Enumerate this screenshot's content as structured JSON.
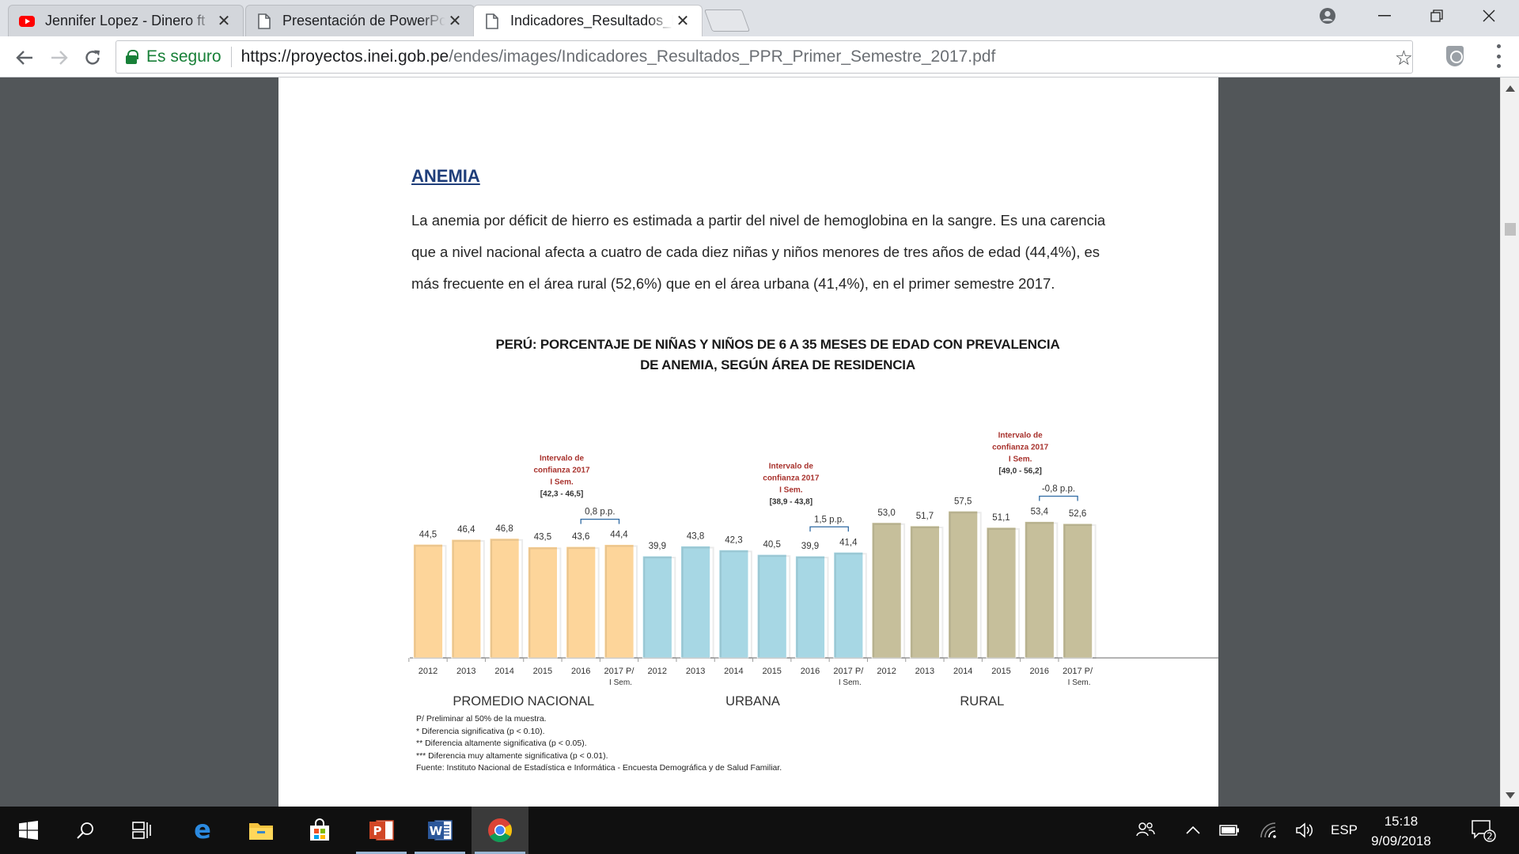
{
  "browser": {
    "tabs": [
      {
        "title": "Jennifer Lopez - Dinero ft",
        "icon": "youtube-icon"
      },
      {
        "title": "Presentación de PowerPo",
        "icon": "document-icon"
      },
      {
        "title": "Indicadores_Resultados_P",
        "icon": "document-icon"
      }
    ],
    "security_label": "Es seguro",
    "url_host": "https://proyectos.inei.gob.pe",
    "url_path": "/endes/images/Indicadores_Resultados_PPR_Primer_Semestre_2017.pdf"
  },
  "document": {
    "heading": "ANEMIA",
    "paragraph_lines": [
      "La anemia por déficit de hierro es estimada a partir del nivel de hemoglobina en la sangre. Es una carencia",
      "que a nivel nacional afecta a cuatro de cada diez niñas y niños menores de tres años de edad (44,4%), es",
      "más frecuente en el área rural (52,6%) que en el área urbana (41,4%), en el primer semestre 2017."
    ],
    "chart_title_lines": [
      "PERÚ: PORCENTAJE DE NIÑAS Y NIÑOS DE 6 A 35 MESES DE EDAD CON PREVALENCIA",
      "DE ANEMIA, SEGÚN ÁREA DE RESIDENCIA"
    ],
    "notes": [
      "P/ Preliminar al 50% de la muestra.",
      "*     Diferencia significativa (p < 0.10).",
      "**  Diferencia altamente significativa (p < 0.05).",
      "*** Diferencia muy altamente significativa (p < 0.01).",
      "Fuente: Instituto Nacional de Estadística e Informática - Encuesta Demográfica y de Salud Familiar."
    ]
  },
  "chart_data": {
    "type": "bar",
    "title": "PERÚ: PORCENTAJE DE NIÑAS Y NIÑOS DE 6 A 35 MESES DE EDAD CON PREVALENCIA DE ANEMIA, SEGÚN ÁREA DE RESIDENCIA",
    "xlabel": "",
    "ylabel": "",
    "ylim": [
      0,
      60
    ],
    "grid": false,
    "groups": [
      {
        "name": "PROMEDIO NACIONAL",
        "color": "#fdd59a",
        "categories": [
          "2012",
          "2013",
          "2014",
          "2015",
          "2016",
          "2017 P/"
        ],
        "sublabels": [
          "",
          "",
          "",
          "",
          "",
          "I Sem."
        ],
        "values": [
          44.5,
          46.4,
          46.8,
          43.5,
          43.6,
          44.4
        ],
        "value_labels": [
          "44,5",
          "46,4",
          "46,8",
          "43,5",
          "43,6",
          "44,4"
        ],
        "diff_label": "0,8 p.p.",
        "ci_lines": [
          "Intervalo de",
          "confianza 2017",
          "I Sem.",
          "[42,3 - 46,5]"
        ]
      },
      {
        "name": "URBANA",
        "color": "#a7d7e4",
        "categories": [
          "2012",
          "2013",
          "2014",
          "2015",
          "2016",
          "2017 P/"
        ],
        "sublabels": [
          "",
          "",
          "",
          "",
          "",
          "I Sem."
        ],
        "values": [
          39.9,
          43.8,
          42.3,
          40.5,
          39.9,
          41.4
        ],
        "value_labels": [
          "39,9",
          "43,8",
          "42,3",
          "40,5",
          "39,9",
          "41,4"
        ],
        "diff_label": "1,5 p.p.",
        "ci_lines": [
          "Intervalo de",
          "confianza 2017",
          "I Sem.",
          "[38,9 - 43,8]"
        ]
      },
      {
        "name": "RURAL",
        "color": "#c6bf9b",
        "categories": [
          "2012",
          "2013",
          "2014",
          "2015",
          "2016",
          "2017 P/"
        ],
        "sublabels": [
          "",
          "",
          "",
          "",
          "",
          "I Sem."
        ],
        "values": [
          53.0,
          51.7,
          57.5,
          51.1,
          53.4,
          52.6
        ],
        "value_labels": [
          "53,0",
          "51,7",
          "57,5",
          "51,1",
          "53,4",
          "52,6"
        ],
        "diff_label": "-0,8 p.p.",
        "ci_lines": [
          "Intervalo de",
          "confianza 2017",
          "I Sem.",
          "[49,0 - 56,2]"
        ]
      }
    ]
  },
  "taskbar": {
    "apps": [
      "start-icon",
      "search-icon",
      "task-view-icon",
      "edge-icon",
      "file-explorer-icon",
      "store-icon",
      "powerpoint-icon",
      "word-icon",
      "chrome-icon"
    ],
    "language": "ESP",
    "time": "15:18",
    "date": "9/09/2018",
    "notification_count": "2"
  }
}
